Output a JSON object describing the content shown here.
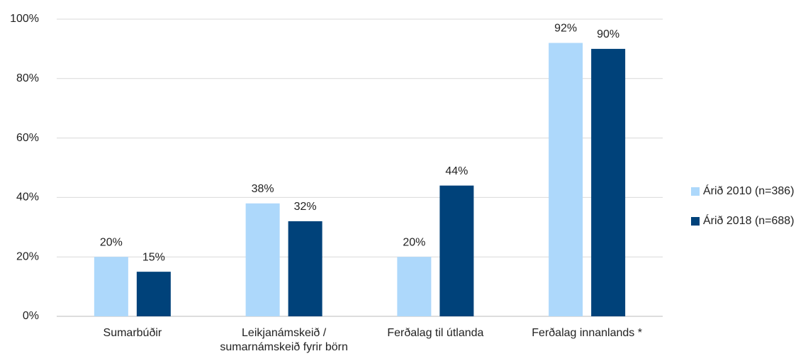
{
  "chart_data": {
    "type": "bar",
    "categories": [
      "Sumarbúðir",
      "Leikjanámskeið /\nsumarnámskeið fyrir börn",
      "Ferðalag til útlanda",
      "Ferðalag innanlands *"
    ],
    "series": [
      {
        "name": "Árið 2010 (n=386)",
        "color": "#add8fb",
        "values": [
          20,
          38,
          20,
          92
        ],
        "value_labels": [
          "20%",
          "38%",
          "20%",
          "92%"
        ]
      },
      {
        "name": "Árið 2018 (n=688)",
        "color": "#00427a",
        "values": [
          15,
          32,
          44,
          90
        ],
        "value_labels": [
          "15%",
          "32%",
          "44%",
          "90%"
        ]
      }
    ],
    "ylim": [
      0,
      100
    ],
    "yticks": [
      {
        "value": 0,
        "label": "0%"
      },
      {
        "value": 20,
        "label": "20%"
      },
      {
        "value": 40,
        "label": "40%"
      },
      {
        "value": 60,
        "label": "60%"
      },
      {
        "value": 80,
        "label": "80%"
      },
      {
        "value": 100,
        "label": "100%"
      }
    ],
    "grid": true,
    "legend": "right"
  }
}
